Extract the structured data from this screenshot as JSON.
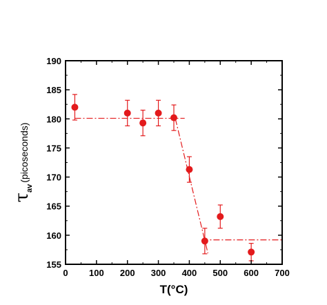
{
  "chart_data": {
    "type": "scatter",
    "xlabel": "T(°C)",
    "ylabel": {
      "symbol": "τ",
      "subscript": "av",
      "text": "(picoseconds)"
    },
    "xlim": [
      0,
      700
    ],
    "ylim": [
      155,
      190
    ],
    "x_ticks": [
      0,
      100,
      200,
      300,
      400,
      500,
      600,
      700
    ],
    "y_ticks": [
      155,
      160,
      165,
      170,
      175,
      180,
      185,
      190
    ],
    "grid": false,
    "legend": "none",
    "marker_color": "#e31a1c",
    "line_color": "#e31a1c",
    "points": [
      {
        "x": 30,
        "y": 182.0,
        "err": 2.2
      },
      {
        "x": 200,
        "y": 181.0,
        "err": 2.2
      },
      {
        "x": 250,
        "y": 179.3,
        "err": 2.2
      },
      {
        "x": 300,
        "y": 181.0,
        "err": 2.2
      },
      {
        "x": 350,
        "y": 180.2,
        "err": 2.2
      },
      {
        "x": 400,
        "y": 171.3,
        "err": 2.2
      },
      {
        "x": 450,
        "y": 159.0,
        "err": 2.2
      },
      {
        "x": 500,
        "y": 163.2,
        "err": 2.0
      },
      {
        "x": 600,
        "y": 157.1,
        "err": 1.5
      }
    ],
    "fit_lines": [
      {
        "x": [
          30,
          385
        ],
        "y": [
          180.1,
          180.1
        ]
      },
      {
        "x": [
          355,
          460
        ],
        "y": [
          180.0,
          156.9
        ]
      },
      {
        "x": [
          440,
          700
        ],
        "y": [
          159.2,
          159.2
        ]
      }
    ]
  }
}
